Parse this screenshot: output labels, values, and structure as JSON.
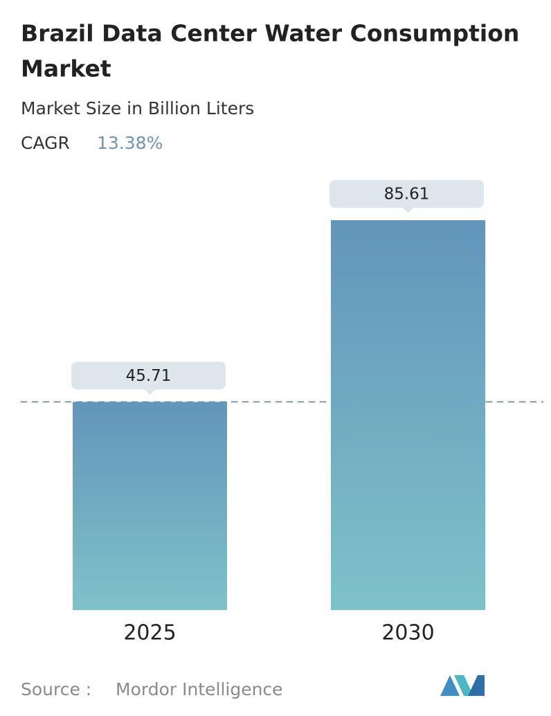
{
  "chart_data": {
    "type": "bar",
    "title": "Brazil Data Center Water Consumption Market",
    "subtitle": "Market Size in Billion Liters",
    "cagr_label": "CAGR",
    "cagr": "13.38%",
    "categories": [
      "2025",
      "2030"
    ],
    "values": [
      45.71,
      85.61
    ],
    "source_label": "Source :",
    "source": "Mordor Intelligence"
  }
}
